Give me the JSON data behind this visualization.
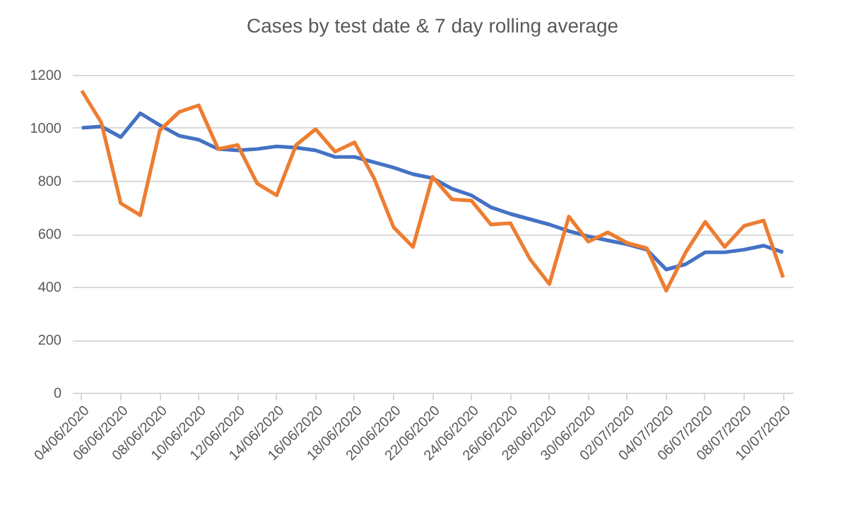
{
  "chart_data": {
    "type": "line",
    "title": "Cases by test date & 7 day rolling average",
    "categories": [
      "04/06/2020",
      null,
      "06/06/2020",
      null,
      "08/06/2020",
      null,
      "10/06/2020",
      null,
      "12/06/2020",
      null,
      "14/06/2020",
      null,
      "16/06/2020",
      null,
      "18/06/2020",
      null,
      "20/06/2020",
      null,
      "22/06/2020",
      null,
      "24/06/2020",
      null,
      "26/06/2020",
      null,
      "28/06/2020",
      null,
      "30/06/2020",
      null,
      "02/07/2020",
      null,
      "04/07/2020",
      null,
      "06/07/2020",
      null,
      "08/07/2020",
      null,
      "10/07/2020"
    ],
    "series": [
      {
        "color": "#4472c4",
        "values": [
          1000,
          1005,
          965,
          1055,
          1010,
          970,
          955,
          920,
          915,
          920,
          930,
          925,
          915,
          890,
          890,
          870,
          850,
          825,
          810,
          770,
          745,
          700,
          675,
          655,
          635,
          610,
          590,
          575,
          560,
          540,
          465,
          485,
          530,
          530,
          540,
          555,
          530
        ]
      },
      {
        "color": "#ed7d31",
        "values": [
          1140,
          1020,
          715,
          670,
          990,
          1060,
          1085,
          920,
          935,
          790,
          745,
          935,
          995,
          910,
          945,
          810,
          625,
          550,
          815,
          730,
          725,
          635,
          640,
          505,
          410,
          665,
          570,
          605,
          565,
          545,
          385,
          530,
          645,
          550,
          630,
          650,
          435
        ]
      }
    ],
    "ylim": [
      0,
      1200
    ],
    "yticks": [
      0,
      200,
      400,
      600,
      800,
      1000,
      1200
    ],
    "grid": "y"
  }
}
